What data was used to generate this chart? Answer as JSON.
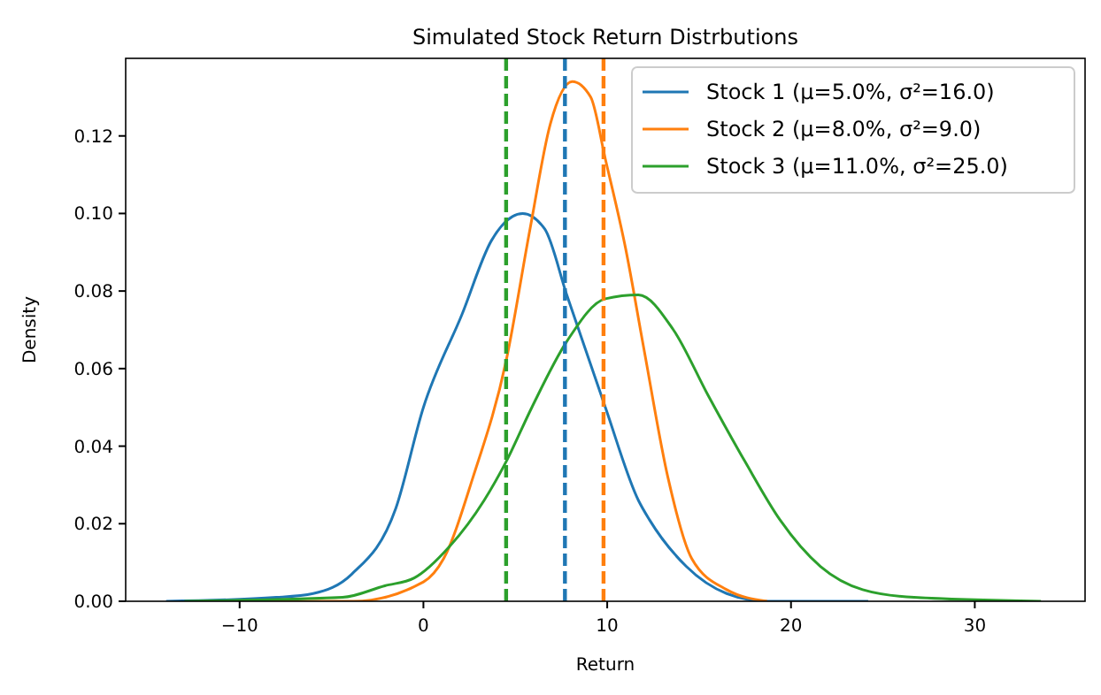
{
  "chart_data": {
    "type": "line",
    "title": "Simulated Stock Return Distrbutions",
    "xlabel": "Return",
    "ylabel": "Density",
    "xlim": [
      -16.2,
      36.0
    ],
    "ylim": [
      0,
      0.14
    ],
    "xticks": [
      {
        "value": -10,
        "label": "−10"
      },
      0,
      10,
      20,
      30
    ],
    "yticks": [
      {
        "value": 0,
        "label": "0.00"
      },
      {
        "value": 0.02,
        "label": "0.02"
      },
      {
        "value": 0.04,
        "label": "0.04"
      },
      {
        "value": 0.06,
        "label": "0.06"
      },
      {
        "value": 0.08,
        "label": "0.08"
      },
      {
        "value": 0.1,
        "label": "0.10"
      },
      {
        "value": 0.12,
        "label": "0.12"
      }
    ],
    "legend": "top right",
    "line_style": "solid",
    "marker": "none",
    "series": [
      {
        "name": "Stock 1 (μ=5.0%, σ²=16.0)",
        "color": "#1f77b4",
        "x": [
          -14,
          -8,
          -6,
          -3.9,
          -1.5,
          0,
          2.1,
          3.7,
          5.4,
          6.6,
          7.8,
          9.9,
          11.7,
          12.3,
          14.3,
          16.5,
          18.7,
          24.2
        ],
        "values": [
          0,
          0.001,
          0.002,
          0.007,
          0.024,
          0.05,
          0.074,
          0.093,
          0.1,
          0.096,
          0.079,
          0.05,
          0.026,
          0.021,
          0.009,
          0.002,
          0,
          0
        ]
      },
      {
        "name": "Stock 2 (μ=8.0%, σ²=9.0)",
        "color": "#ff7f0e",
        "x": [
          -12,
          -3.8,
          0,
          1.1,
          2.7,
          4.5,
          5.8,
          6.9,
          8.1,
          9.1,
          9.9,
          11.0,
          12.0,
          13.3,
          14.6,
          16.5,
          18.7
        ],
        "values": [
          0,
          0,
          0.005,
          0.011,
          0.032,
          0.062,
          0.096,
          0.123,
          0.134,
          0.13,
          0.114,
          0.091,
          0.065,
          0.032,
          0.011,
          0.003,
          0
        ]
      },
      {
        "name": "Stock 3 (μ=11.0%, σ²=25.0)",
        "color": "#2ca02c",
        "x": [
          -13,
          -4.4,
          -2.1,
          -0.5,
          1.4,
          3.3,
          4.5,
          5.9,
          7.8,
          9.9,
          11.7,
          13.6,
          15.5,
          17.5,
          19.4,
          21.6,
          23.9,
          26.7,
          33.6
        ],
        "values": [
          0,
          0.001,
          0.004,
          0.006,
          0.014,
          0.026,
          0.036,
          0.05,
          0.067,
          0.078,
          0.079,
          0.07,
          0.053,
          0.036,
          0.021,
          0.009,
          0.003,
          0.001,
          0
        ]
      }
    ],
    "ref_lines": [
      {
        "axis": "x",
        "value": 7.7,
        "color": "#1f77b4",
        "line_style": "dashed"
      },
      {
        "axis": "x",
        "value": 9.8,
        "color": "#ff7f0e",
        "line_style": "dashed"
      },
      {
        "axis": "x",
        "value": 4.5,
        "color": "#2ca02c",
        "line_style": "dashed"
      }
    ]
  }
}
